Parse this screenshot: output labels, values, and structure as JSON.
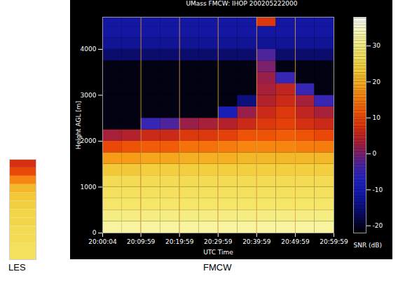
{
  "chart_data": [
    {
      "type": "heatmap",
      "title": "UMass FMCW: IHOP 200205222000",
      "caption": "FMCW",
      "x_label": "UTC Time",
      "y_label": "Height AGL [m]",
      "xlim": [
        4,
        3599
      ],
      "xticks": [
        {
          "value": 4,
          "label": "20:00:04"
        },
        {
          "value": 599,
          "label": "20:09:59"
        },
        {
          "value": 1199,
          "label": "20:19:59"
        },
        {
          "value": 1799,
          "label": "20:29:59"
        },
        {
          "value": 2399,
          "label": "20:39:59"
        },
        {
          "value": 2999,
          "label": "20:49:59"
        },
        {
          "value": 3599,
          "label": "20:59:59"
        }
      ],
      "ylim": [
        0,
        4700
      ],
      "yticks": [
        0,
        1000,
        2000,
        3000,
        4000
      ],
      "grid": true,
      "x_bins": [
        0,
        300,
        600,
        900,
        1200,
        1500,
        1800,
        2100,
        2400,
        2700,
        3000,
        3300,
        3600
      ],
      "y_bins": [
        0,
        250,
        500,
        750,
        1000,
        1250,
        1500,
        1750,
        2000,
        2250,
        2500,
        2750,
        3000,
        3250,
        3500,
        3750,
        4000,
        4250,
        4500,
        4750
      ],
      "values": [
        [
          32,
          32,
          32,
          32,
          32,
          32,
          32,
          32,
          32,
          32,
          32,
          32
        ],
        [
          30,
          30,
          30,
          30,
          30,
          30,
          30,
          30,
          30,
          30,
          30,
          30
        ],
        [
          28,
          28,
          28,
          28,
          28,
          28,
          28,
          28,
          28,
          28,
          28,
          28
        ],
        [
          27,
          27,
          27,
          27,
          27,
          27,
          27,
          27,
          27,
          27,
          27,
          27
        ],
        [
          26,
          26,
          26,
          26,
          26,
          26,
          26,
          26,
          26,
          26,
          26,
          26
        ],
        [
          23,
          23,
          24,
          24,
          24,
          24,
          24,
          24,
          24,
          24,
          24,
          24
        ],
        [
          18,
          18,
          19,
          19,
          20,
          20,
          20,
          21,
          21,
          21,
          21,
          21
        ],
        [
          10,
          11,
          12,
          12,
          14,
          14,
          15,
          16,
          16,
          16,
          15,
          15
        ],
        [
          3,
          4,
          6,
          6,
          8,
          8,
          9,
          11,
          11,
          12,
          11,
          10
        ],
        [
          -21,
          -21,
          -5,
          -3,
          2,
          3,
          4,
          6,
          8,
          9,
          7,
          6
        ],
        [
          -21,
          -21,
          -21,
          -21,
          -21,
          -21,
          -10,
          2,
          6,
          8,
          5,
          3
        ],
        [
          -21,
          -21,
          -21,
          -21,
          -21,
          -21,
          -21,
          -15,
          4,
          6,
          3,
          -5
        ],
        [
          -21,
          -21,
          -21,
          -21,
          -21,
          -21,
          -21,
          -21,
          3,
          5,
          -5,
          -21
        ],
        [
          -21,
          -21,
          -21,
          -21,
          -21,
          -21,
          -21,
          -21,
          2,
          -5,
          -21,
          -21
        ],
        [
          -21,
          -21,
          -21,
          -21,
          -21,
          -21,
          -21,
          -21,
          0,
          -21,
          -21,
          -21
        ],
        [
          -16,
          -16,
          -16,
          -16,
          -16,
          -16,
          -16,
          -16,
          -3,
          -16,
          -16,
          -16
        ],
        [
          -13,
          -13,
          -13,
          -13,
          -13,
          -13,
          -13,
          -13,
          -13,
          -13,
          -13,
          -13
        ],
        [
          -12,
          -12,
          -12,
          -12,
          -12,
          -12,
          -12,
          -12,
          -12,
          -12,
          -12,
          -12
        ],
        [
          -12,
          -12,
          -12,
          -12,
          -12,
          -12,
          -12,
          -12,
          8,
          -12,
          -12,
          -12
        ]
      ],
      "colorbar": {
        "label": "SNR (dB)",
        "range": [
          -22,
          38
        ],
        "ticks": [
          -20,
          -10,
          0,
          10,
          20,
          30
        ]
      }
    },
    {
      "type": "heatmap",
      "caption": "LES",
      "tick_labels": false,
      "values": [
        27,
        27,
        26,
        26,
        25,
        25,
        24,
        23,
        21,
        16,
        10,
        7
      ]
    }
  ]
}
